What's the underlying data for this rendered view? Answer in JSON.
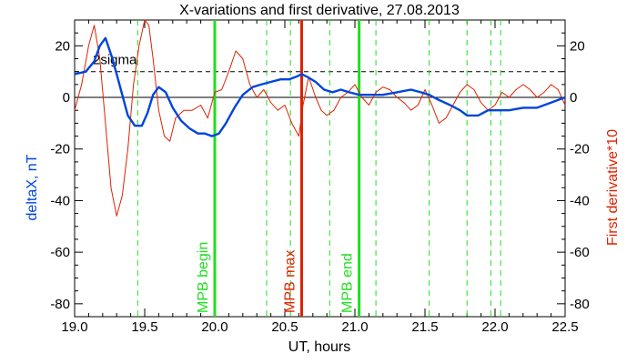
{
  "chart_data": {
    "type": "line",
    "title": "X-variations and first derivative, 27.08.2013",
    "xlabel": "UT, hours",
    "ylabel_left": "deltaX, nT",
    "ylabel_right": "First derivative*10",
    "xlim": [
      19.0,
      22.5
    ],
    "ylim": [
      -85,
      30
    ],
    "x_ticks": [
      "19.0",
      "19.5",
      "20.0",
      "20.5",
      "21.0",
      "21.5",
      "22.0",
      "22.5"
    ],
    "y_ticks_left": [
      "20",
      "0",
      "-20",
      "-40",
      "-60",
      "-80"
    ],
    "y_ticks_right": [
      "20",
      "0",
      "-20",
      "-40",
      "-60",
      "-80"
    ],
    "colors": {
      "deltaX": "#0044dd",
      "derivative": "#dd2200",
      "green": "#22dd22",
      "red": "#dd2200"
    },
    "threshold": {
      "label": "2sigma",
      "value": 10
    },
    "vertical_lines": [
      {
        "x": 20.0,
        "label": "MPB begin",
        "color": "#22dd22",
        "style": "solid"
      },
      {
        "x": 20.62,
        "label": "MPB max",
        "color": "#dd2200",
        "style": "solid"
      },
      {
        "x": 21.03,
        "label": "MPB end",
        "color": "#22dd22",
        "style": "solid"
      }
    ],
    "dashed_lines_x": [
      19.45,
      20.37,
      20.54,
      20.82,
      21.15,
      21.53,
      21.8,
      21.97,
      22.04
    ],
    "series": [
      {
        "key": "deltaX",
        "x": [
          19.0,
          19.08,
          19.14,
          19.18,
          19.22,
          19.27,
          19.33,
          19.38,
          19.43,
          19.48,
          19.52,
          19.56,
          19.6,
          19.65,
          19.7,
          19.76,
          19.82,
          19.88,
          19.93,
          19.98,
          20.03,
          20.08,
          20.14,
          20.2,
          20.27,
          20.33,
          20.4,
          20.47,
          20.53,
          20.58,
          20.62,
          20.66,
          20.72,
          20.78,
          20.84,
          20.9,
          20.96,
          21.03,
          21.1,
          21.2,
          21.3,
          21.4,
          21.47,
          21.53,
          21.6,
          21.68,
          21.75,
          21.8,
          21.88,
          21.95,
          22.0,
          22.1,
          22.2,
          22.3,
          22.4,
          22.45,
          22.5
        ],
        "y": [
          9,
          10,
          14,
          20,
          23,
          15,
          3,
          -7,
          -11,
          -11,
          -6,
          1,
          4,
          2,
          -4,
          -9,
          -12,
          -14,
          -14,
          -15,
          -14,
          -10,
          -4,
          1,
          4,
          5,
          6,
          7,
          7,
          8,
          9,
          8,
          6,
          3,
          2,
          3,
          2,
          1,
          1,
          1,
          2,
          3,
          2,
          1,
          -1,
          -3,
          -5,
          -7,
          -7,
          -5,
          -5,
          -5,
          -4,
          -4,
          -2,
          -1,
          0
        ]
      },
      {
        "key": "derivative",
        "x": [
          19.0,
          19.05,
          19.1,
          19.14,
          19.18,
          19.22,
          19.26,
          19.3,
          19.34,
          19.38,
          19.42,
          19.46,
          19.5,
          19.53,
          19.56,
          19.6,
          19.64,
          19.68,
          19.72,
          19.78,
          19.84,
          19.9,
          19.95,
          20.0,
          20.05,
          20.1,
          20.15,
          20.2,
          20.25,
          20.3,
          20.35,
          20.4,
          20.45,
          20.5,
          20.55,
          20.6,
          20.63,
          20.67,
          20.72,
          20.76,
          20.8,
          20.85,
          20.9,
          20.95,
          21.0,
          21.05,
          21.1,
          21.15,
          21.2,
          21.25,
          21.3,
          21.35,
          21.4,
          21.45,
          21.5,
          21.55,
          21.6,
          21.65,
          21.7,
          21.75,
          21.8,
          21.85,
          21.9,
          21.95,
          22.0,
          22.05,
          22.1,
          22.15,
          22.2,
          22.25,
          22.3,
          22.35,
          22.4,
          22.45,
          22.5
        ],
        "y": [
          -5,
          5,
          20,
          28,
          15,
          -10,
          -35,
          -46,
          -38,
          -20,
          5,
          20,
          30,
          28,
          15,
          -5,
          -15,
          -17,
          -8,
          -5,
          -5,
          -3,
          -8,
          2,
          3,
          10,
          18,
          15,
          5,
          0,
          3,
          -2,
          -5,
          -3,
          -10,
          -15,
          -3,
          8,
          0,
          -5,
          -7,
          -5,
          0,
          2,
          5,
          0,
          -3,
          2,
          4,
          3,
          0,
          -2,
          -5,
          -3,
          3,
          -3,
          -10,
          -8,
          -3,
          2,
          5,
          3,
          -2,
          -5,
          -3,
          2,
          0,
          3,
          5,
          3,
          0,
          2,
          5,
          3,
          -3
        ]
      }
    ]
  }
}
